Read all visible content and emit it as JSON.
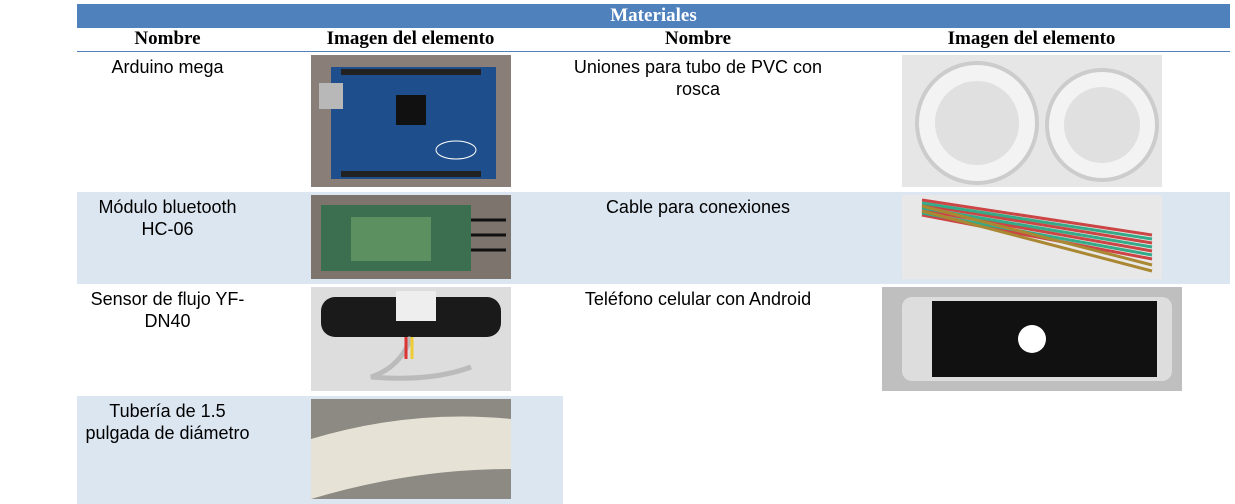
{
  "table": {
    "title": "Materiales",
    "headers": [
      "Nombre",
      "Imagen del elemento",
      "Nombre",
      "Imagen del elemento"
    ],
    "rows": [
      {
        "left": "Arduino mega",
        "right": "Uniones para tubo de PVC con rosca"
      },
      {
        "left": "Módulo bluetooth HC-06",
        "right": "Cable para conexiones"
      },
      {
        "left": "Sensor de flujo YF-DN40",
        "right": "Teléfono celular con Android"
      },
      {
        "left": "Tubería de 1.5 pulgada de diámetro"
      }
    ]
  }
}
